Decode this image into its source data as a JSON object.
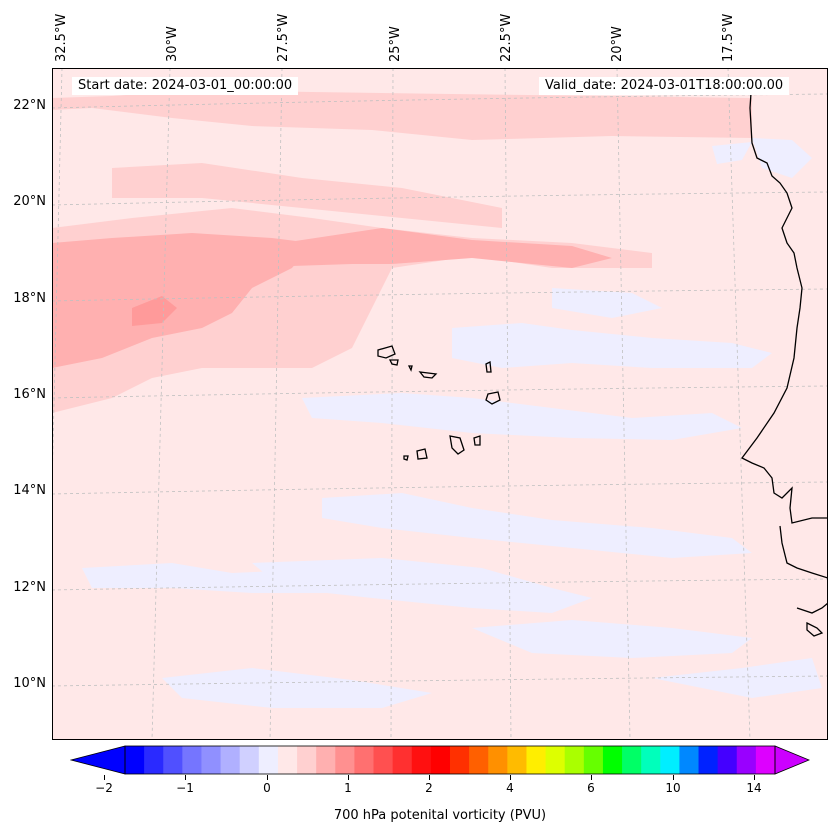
{
  "map": {
    "start_date_label": "Start date: 2024-03-01_00:00:00",
    "valid_date_label": "Valid_date: 2024-03-01T18:00:00.00",
    "lon_labels": [
      "32.5°W",
      "30°W",
      "27.5°W",
      "25°W",
      "22.5°W",
      "20°W",
      "17.5°W"
    ],
    "lat_labels": [
      "22°N",
      "20°N",
      "18°N",
      "16°N",
      "14°N",
      "12°N",
      "10°N"
    ],
    "background_color": "#ffe8e8"
  },
  "colorbar": {
    "label": "700 hPa potenital vorticity (PVU)",
    "tick_labels": [
      "−2",
      "−1",
      "0",
      "1",
      "2",
      "4",
      "6",
      "10",
      "14"
    ],
    "colors": [
      "#0000ff",
      "#2a2aff",
      "#5050ff",
      "#7575ff",
      "#9090ff",
      "#b0b0ff",
      "#d0d0ff",
      "#eeeeff",
      "#ffe8e8",
      "#ffd0d0",
      "#ffb0b0",
      "#ff9090",
      "#ff7070",
      "#ff5050",
      "#ff3030",
      "#ff1010",
      "#ff0000",
      "#ff3000",
      "#ff6000",
      "#ff9000",
      "#ffbb00",
      "#ffee00",
      "#ddff00",
      "#aaff00",
      "#66ff00",
      "#00ff00",
      "#00ff66",
      "#00ffbb",
      "#00eeff",
      "#0088ff",
      "#0022ff",
      "#4400ff",
      "#9900ff",
      "#dd00ff"
    ],
    "extend_min_color": "#0000ff",
    "extend_max_color": "#cc00ff"
  }
}
